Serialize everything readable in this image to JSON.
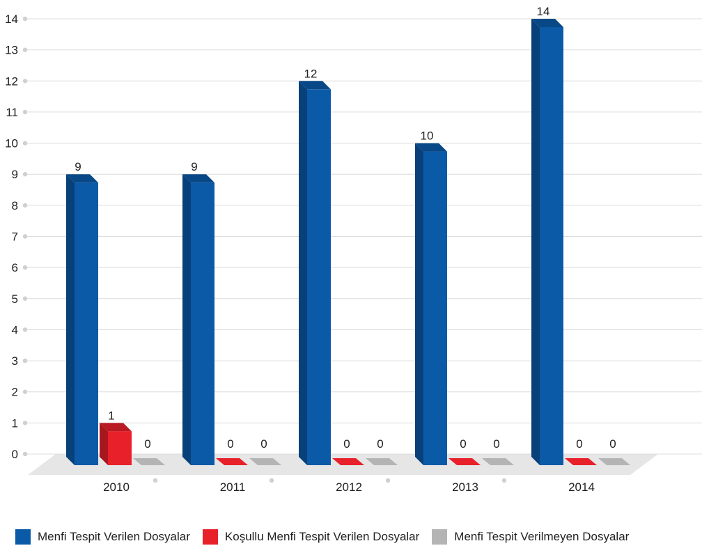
{
  "chart_data": {
    "type": "bar",
    "categories": [
      "2010",
      "2011",
      "2012",
      "2013",
      "2014"
    ],
    "series": [
      {
        "name": "Menfi Tespit Verilen Dosyalar",
        "values": [
          9,
          9,
          12,
          10,
          14
        ],
        "color": "#0b5aa8"
      },
      {
        "name": "Koşullu Menfi Tespit Verilen Dosyalar",
        "values": [
          1,
          0,
          0,
          0,
          0
        ],
        "color": "#e8202a"
      },
      {
        "name": "Menfi Tespit Verilmeyen Dosyalar",
        "values": [
          0,
          0,
          0,
          0,
          0
        ],
        "color": "#b4b4b4"
      }
    ],
    "ylim": [
      0,
      14
    ],
    "yticks": [
      "0",
      "1",
      "2",
      "3",
      "4",
      "5",
      "6",
      "7",
      "8",
      "9",
      "10",
      "11",
      "12",
      "13",
      "14"
    ],
    "grid": true,
    "legend_position": "bottom"
  }
}
